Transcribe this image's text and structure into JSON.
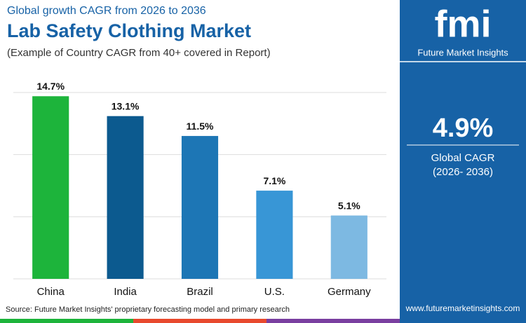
{
  "chart_data": {
    "type": "bar",
    "subtitle": "Global growth CAGR from 2026 to 2036",
    "title": "Lab Safety Clothing Market",
    "note": "(Example of Country CAGR from 40+ covered in Report)",
    "categories": [
      "China",
      "India",
      "Brazil",
      "U.S.",
      "Germany"
    ],
    "values": [
      14.7,
      13.1,
      11.5,
      7.1,
      5.1
    ],
    "value_labels": [
      "14.7%",
      "13.1%",
      "11.5%",
      "7.1%",
      "5.1%"
    ],
    "colors": [
      "#1db43b",
      "#0c5a8f",
      "#1d76b5",
      "#3896d6",
      "#7db9e2"
    ],
    "ylim": [
      0,
      15
    ],
    "yticks": [
      0,
      5,
      10,
      15
    ],
    "grid": true,
    "source": "Source: Future Market Insights' proprietary forecasting model and primary research"
  },
  "sidebar": {
    "logo": "fmi",
    "brand": "Future Market Insights",
    "cagr": "4.9%",
    "cagr_label": "Global CAGR",
    "period": "(2026- 2036)",
    "website": "www.futuremarketinsights.com"
  }
}
